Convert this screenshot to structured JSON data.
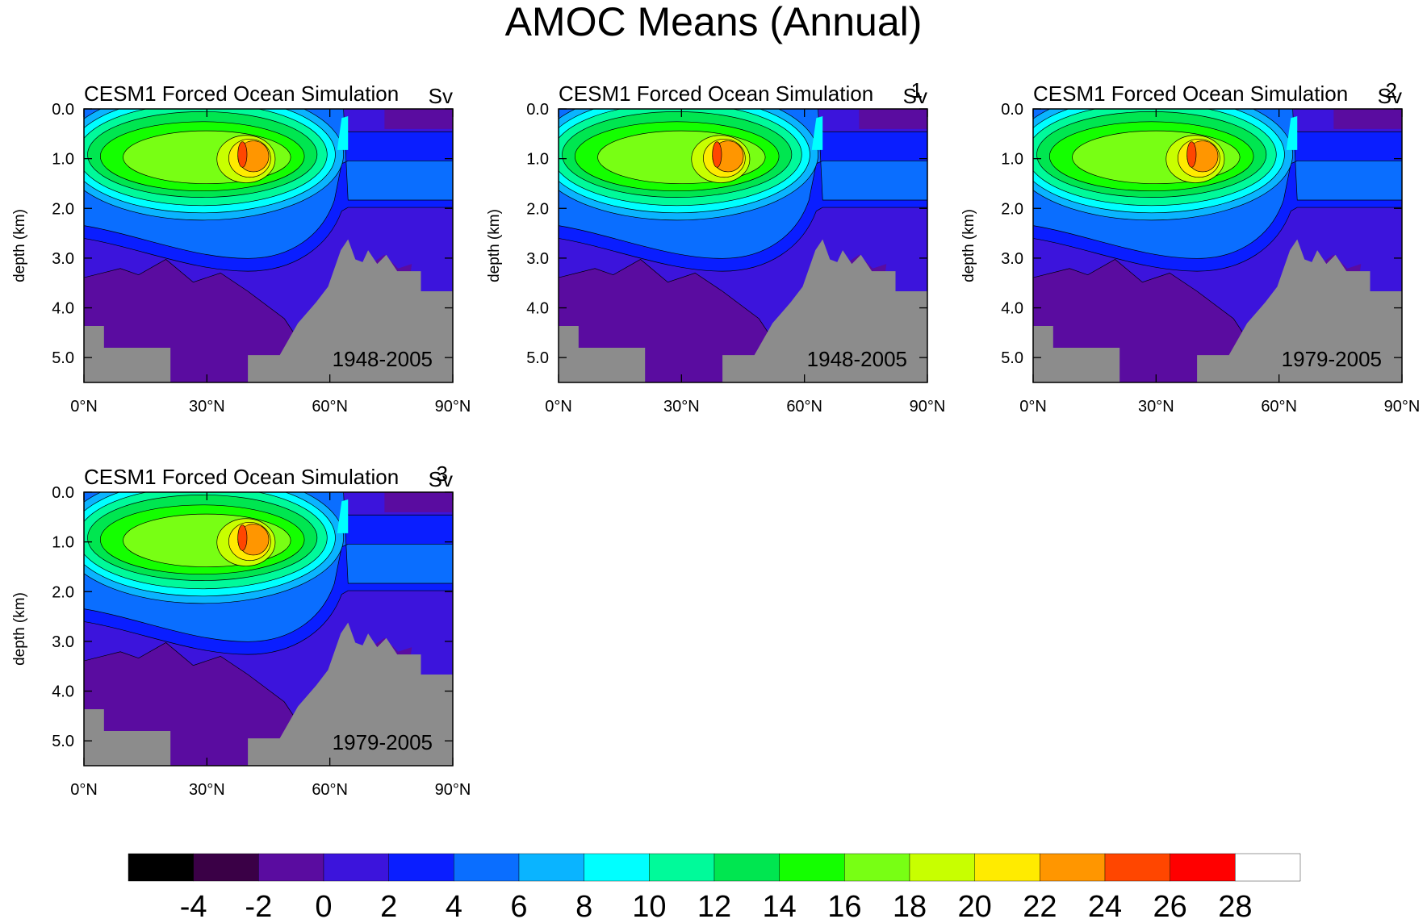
{
  "title": "AMOC Means (Annual)",
  "chart_data": [
    {
      "type": "contour",
      "title": "CESM1 Forced Ocean Simulation",
      "unit": "Sv",
      "period": "1948-2005",
      "ylabel": "depth (km)",
      "xlim": [
        0,
        90
      ],
      "xticks": [
        {
          "value": 0,
          "label": "0°N"
        },
        {
          "value": 30,
          "label": "30°N"
        },
        {
          "value": 60,
          "label": "60°N"
        },
        {
          "value": 90,
          "label": "90°N"
        }
      ],
      "ylim": [
        0,
        5.5
      ],
      "yticks": [
        {
          "value": 0,
          "label": "0.0"
        },
        {
          "value": 1,
          "label": "1.0"
        },
        {
          "value": 2,
          "label": "2.0"
        },
        {
          "value": 3,
          "label": "3.0"
        },
        {
          "value": 4,
          "label": "4.0"
        },
        {
          "value": 5,
          "label": "5.0"
        }
      ]
    },
    {
      "type": "contour",
      "title": "CESM1 Forced Ocean Simulation",
      "unit": "Sv",
      "index": "1",
      "period": "1948-2005",
      "ylabel": "depth (km)",
      "xlim": [
        0,
        90
      ],
      "xticks": [
        {
          "value": 0,
          "label": "0°N"
        },
        {
          "value": 30,
          "label": "30°N"
        },
        {
          "value": 60,
          "label": "60°N"
        },
        {
          "value": 90,
          "label": "90°N"
        }
      ],
      "ylim": [
        0,
        5.5
      ],
      "yticks": [
        {
          "value": 0,
          "label": "0.0"
        },
        {
          "value": 1,
          "label": "1.0"
        },
        {
          "value": 2,
          "label": "2.0"
        },
        {
          "value": 3,
          "label": "3.0"
        },
        {
          "value": 4,
          "label": "4.0"
        },
        {
          "value": 5,
          "label": "5.0"
        }
      ]
    },
    {
      "type": "contour",
      "title": "CESM1 Forced Ocean Simulation",
      "unit": "Sv",
      "index": "2",
      "period": "1979-2005",
      "ylabel": "depth (km)",
      "xlim": [
        0,
        90
      ],
      "xticks": [
        {
          "value": 0,
          "label": "0°N"
        },
        {
          "value": 30,
          "label": "30°N"
        },
        {
          "value": 60,
          "label": "60°N"
        },
        {
          "value": 90,
          "label": "90°N"
        }
      ],
      "ylim": [
        0,
        5.5
      ],
      "yticks": [
        {
          "value": 0,
          "label": "0.0"
        },
        {
          "value": 1,
          "label": "1.0"
        },
        {
          "value": 2,
          "label": "2.0"
        },
        {
          "value": 3,
          "label": "3.0"
        },
        {
          "value": 4,
          "label": "4.0"
        },
        {
          "value": 5,
          "label": "5.0"
        }
      ]
    },
    {
      "type": "contour",
      "title": "CESM1 Forced Ocean Simulation",
      "unit": "Sv",
      "index": "3",
      "period": "1979-2005",
      "ylabel": "depth (km)",
      "xlim": [
        0,
        90
      ],
      "xticks": [
        {
          "value": 0,
          "label": "0°N"
        },
        {
          "value": 30,
          "label": "30°N"
        },
        {
          "value": 60,
          "label": "60°N"
        },
        {
          "value": 90,
          "label": "90°N"
        }
      ],
      "ylim": [
        0,
        5.5
      ],
      "yticks": [
        {
          "value": 0,
          "label": "0.0"
        },
        {
          "value": 1,
          "label": "1.0"
        },
        {
          "value": 2,
          "label": "2.0"
        },
        {
          "value": 3,
          "label": "3.0"
        },
        {
          "value": 4,
          "label": "4.0"
        },
        {
          "value": 5,
          "label": "5.0"
        }
      ]
    }
  ],
  "colorbar": {
    "levels": [
      -4,
      -2,
      0,
      2,
      4,
      6,
      8,
      10,
      12,
      14,
      16,
      18,
      20,
      22,
      24,
      26,
      28
    ],
    "colors": [
      "#000000",
      "#3a0046",
      "#5a0ca0",
      "#3c14dc",
      "#0a1eff",
      "#0a6eff",
      "#0ab4ff",
      "#00ffff",
      "#00fa9a",
      "#00e650",
      "#14ff00",
      "#78ff14",
      "#c8ff00",
      "#ffeb00",
      "#ff9600",
      "#ff4600",
      "#ff0000",
      "#ffffff"
    ]
  }
}
